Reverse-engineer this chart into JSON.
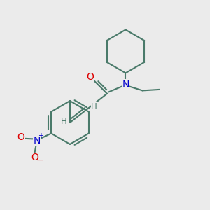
{
  "background_color": "#ebebeb",
  "bond_color": "#4a7a6a",
  "bond_width": 1.5,
  "atom_colors": {
    "O": "#dd0000",
    "N": "#0000cc",
    "C": "#4a7a6a",
    "H": "#4a7a6a"
  },
  "font_size_atom": 10,
  "font_size_H": 8.5,
  "figsize": [
    3.0,
    3.0
  ],
  "dpi": 100
}
